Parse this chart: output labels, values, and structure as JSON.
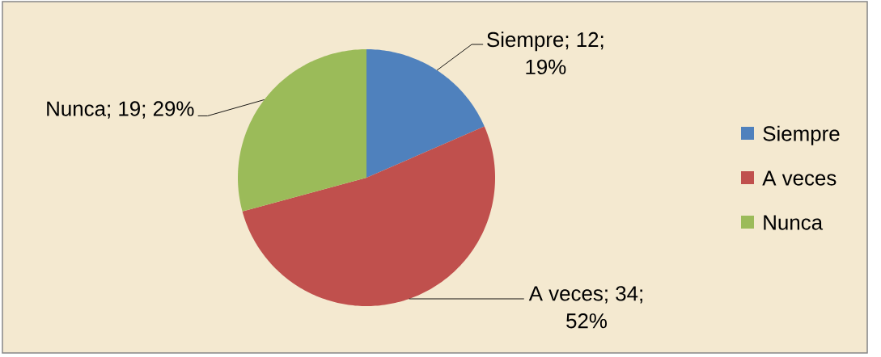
{
  "chart_data": {
    "type": "pie",
    "categories": [
      "Siempre",
      "A veces",
      "Nunca"
    ],
    "values": [
      12,
      34,
      19
    ],
    "colors": [
      "#4f81bd",
      "#c0504d",
      "#9bbb59"
    ],
    "value_labels": [
      "Siempre; 12; 19%",
      "A veces; 34; 52%",
      "Nunca; 19; 29%"
    ],
    "legend": "right"
  }
}
